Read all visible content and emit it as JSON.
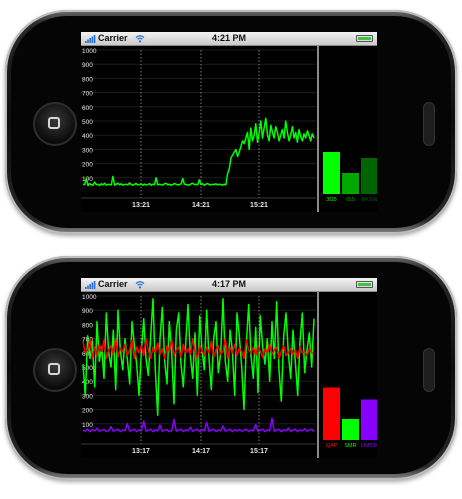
{
  "phones": [
    {
      "status": {
        "carrier": "Carrier",
        "time": "4:21 PM",
        "signal_icon": "signal-bars-icon",
        "wifi_icon": "wifi-icon",
        "battery_icon": "battery-icon"
      },
      "y_ticks": [
        "1000",
        "900",
        "800",
        "700",
        "600",
        "500",
        "400",
        "300",
        "200",
        "100"
      ],
      "x_ticks": [
        "13:21",
        "14:21",
        "15:21"
      ],
      "bars": [
        {
          "label": "3G5",
          "color": "#00ff00",
          "value": 0.28
        },
        {
          "label": "ISS",
          "color": "#00a800",
          "value": 0.14
        },
        {
          "label": "BKSW",
          "color": "#006400",
          "value": 0.24
        }
      ]
    },
    {
      "status": {
        "carrier": "Carrier",
        "time": "4:17 PM",
        "signal_icon": "signal-bars-icon",
        "wifi_icon": "wifi-icon",
        "battery_icon": "battery-icon"
      },
      "y_ticks": [
        "1000",
        "900",
        "800",
        "700",
        "600",
        "500",
        "400",
        "300",
        "200",
        "100"
      ],
      "x_ticks": [
        "13:17",
        "14:17",
        "15:17"
      ],
      "bars": [
        {
          "label": "QAP",
          "color": "#ff0000",
          "value": 0.35
        },
        {
          "label": "SMR",
          "color": "#00ff00",
          "value": 0.14
        },
        {
          "label": "OMCM",
          "color": "#8a00ff",
          "value": 0.27
        }
      ]
    }
  ],
  "chart_data": [
    {
      "type": "line",
      "ylim": [
        0,
        1000
      ],
      "x_tick_labels": [
        "13:21",
        "14:21",
        "15:21"
      ],
      "series": [
        {
          "color": "#00ff00",
          "values": [
            55,
            52,
            95,
            45,
            60,
            50,
            48,
            70,
            52,
            55,
            46,
            58,
            50,
            62,
            48,
            55,
            52,
            50,
            110,
            48,
            55,
            62,
            50,
            58,
            48,
            52,
            55,
            50,
            65,
            52,
            48,
            55,
            60,
            50,
            52,
            58,
            48,
            55,
            50,
            52,
            60,
            48,
            55,
            52,
            100,
            50,
            55,
            52,
            48,
            58,
            62,
            50,
            55,
            48,
            52,
            60,
            55,
            50,
            52,
            58,
            95,
            55,
            52,
            50,
            48,
            58,
            62,
            52,
            55,
            50,
            85,
            52,
            58,
            48,
            55,
            60,
            52,
            50,
            55,
            52,
            58,
            50,
            55,
            52,
            48,
            55,
            50,
            130,
            160,
            240,
            260,
            280,
            300,
            250,
            280,
            320,
            360,
            340,
            380,
            420,
            300,
            450,
            360,
            400,
            480,
            350,
            420,
            500,
            380,
            450,
            520,
            400,
            360,
            470,
            420,
            380,
            460,
            420,
            360,
            400,
            440,
            380,
            500,
            420,
            360,
            400,
            460,
            380,
            420,
            350,
            440,
            390,
            360,
            410,
            380,
            430,
            400,
            360,
            410,
            380
          ]
        }
      ],
      "bars": [
        {
          "label": "3G5",
          "value": 0.28
        },
        {
          "label": "ISS",
          "value": 0.14
        },
        {
          "label": "BKSW",
          "value": 0.24
        }
      ]
    },
    {
      "type": "line",
      "ylim": [
        0,
        1000
      ],
      "x_tick_labels": [
        "13:17",
        "14:17",
        "15:17"
      ],
      "series": [
        {
          "color": "#00ff00",
          "values": [
            520,
            300,
            720,
            560,
            680,
            360,
            820,
            540,
            640,
            420,
            880,
            600,
            500,
            760,
            340,
            900,
            620,
            480,
            700,
            560,
            380,
            820,
            660,
            520,
            300,
            600,
            840,
            560,
            440,
            720,
            980,
            480,
            160,
            700,
            920,
            540,
            380,
            820,
            600,
            240,
            760,
            880,
            520,
            360,
            660,
            940,
            580,
            420,
            740,
            300,
            860,
            620,
            480,
            900,
            560,
            340,
            700,
            820,
            460,
            600,
            980,
            540,
            400,
            760,
            620,
            300,
            880,
            720,
            500,
            200,
            660,
            940,
            580,
            420,
            780,
            320,
            860,
            640,
            520,
            700,
            400,
            820,
            560,
            960,
            480,
            260,
            720,
            880,
            600,
            420,
            760,
            540,
            300,
            680,
            880,
            460,
            620,
            740,
            500,
            840
          ]
        },
        {
          "color": "#ff0000",
          "values": [
            680,
            600,
            620,
            700,
            560,
            640,
            580,
            660,
            610,
            690,
            560,
            620,
            650,
            590,
            700,
            570,
            630,
            610,
            660,
            580,
            620,
            690,
            560,
            640,
            600,
            650,
            580,
            700,
            620,
            560,
            640,
            600,
            670,
            590,
            630,
            560,
            650,
            610,
            690,
            580,
            620,
            640,
            570,
            660,
            600,
            630,
            590,
            700,
            610,
            560,
            650,
            620,
            580,
            640,
            600,
            680,
            570,
            620,
            650,
            590,
            610,
            700,
            560,
            640,
            600,
            660,
            580,
            630,
            610,
            560,
            690,
            620,
            600,
            640,
            580,
            650,
            610,
            570,
            630,
            600,
            660,
            590,
            620,
            640,
            560,
            610,
            650,
            580,
            600,
            630,
            590,
            620,
            560,
            640,
            600,
            610,
            580,
            630,
            600,
            590
          ]
        },
        {
          "color": "#8a00ff",
          "values": [
            55,
            48,
            62,
            45,
            58,
            50,
            70,
            48,
            55,
            60,
            45,
            52,
            80,
            48,
            55,
            62,
            45,
            58,
            50,
            100,
            48,
            55,
            62,
            45,
            58,
            50,
            120,
            48,
            55,
            62,
            45,
            58,
            50,
            90,
            48,
            55,
            60,
            45,
            52,
            130,
            48,
            55,
            62,
            45,
            58,
            50,
            75,
            48,
            55,
            62,
            45,
            58,
            50,
            110,
            48,
            55,
            62,
            45,
            58,
            50,
            85,
            48,
            55,
            62,
            45,
            58,
            50,
            60,
            48,
            55,
            62,
            45,
            58,
            50,
            95,
            48,
            55,
            62,
            45,
            58,
            50,
            140,
            48,
            55,
            62,
            45,
            58,
            50,
            70,
            48,
            55,
            62,
            45,
            58,
            50,
            65,
            48,
            55,
            62,
            45
          ]
        }
      ],
      "bars": [
        {
          "label": "QAP",
          "value": 0.35
        },
        {
          "label": "SMR",
          "value": 0.14
        },
        {
          "label": "OMCM",
          "value": 0.27
        }
      ]
    }
  ]
}
